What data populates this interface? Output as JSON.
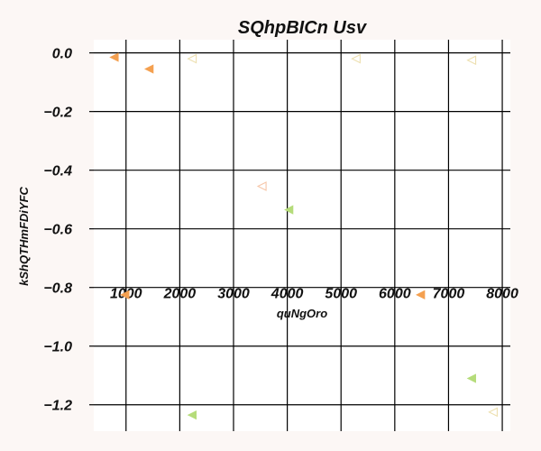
{
  "chart_data": {
    "type": "scatter",
    "title": "SQhpBICn  Usv",
    "xlabel": "quNgOro",
    "ylabel": "kShQTHmFDiYFC",
    "xlim": [
      400,
      8150
    ],
    "ylim": [
      -1.29,
      0.045
    ],
    "x_ticks": [
      1000,
      2000,
      3000,
      4000,
      5000,
      6000,
      7000,
      8000
    ],
    "y_ticks": [
      0.0,
      -0.2,
      -0.4,
      -0.6,
      -0.8,
      -1.0,
      -1.2
    ],
    "x_tick_labels": [
      "1000",
      "2000",
      "3000",
      "4000",
      "5000",
      "6000",
      "7000",
      "8000"
    ],
    "y_tick_labels": [
      "0.0",
      "−0.2",
      "−0.4",
      "−0.6",
      "−0.8",
      "−1.0",
      "−1.2"
    ],
    "grid": true,
    "legend": "none",
    "colors": {
      "background": "#fcf7f5",
      "plot_background": "#ffffff",
      "grid": "#000000",
      "orange": "#f4a050",
      "green": "#b5dc7a",
      "orange_light": "#f6c6a8",
      "yellow_light": "#ede0b0"
    },
    "series": [
      {
        "marker": "triangle-left-filled",
        "color": "#f4a050",
        "points": [
          {
            "x": 780,
            "y": -0.015
          },
          {
            "x": 1430,
            "y": -0.055
          },
          {
            "x": 980,
            "y": -0.825
          },
          {
            "x": 6480,
            "y": -0.825
          }
        ]
      },
      {
        "marker": "triangle-left-filled",
        "color": "#b5dc7a",
        "points": [
          {
            "x": 4030,
            "y": -0.535
          },
          {
            "x": 7430,
            "y": -1.11
          },
          {
            "x": 2230,
            "y": -1.235
          }
        ]
      },
      {
        "marker": "triangle-left-open",
        "color": "#f6c6a8",
        "points": [
          {
            "x": 3530,
            "y": -0.455
          }
        ]
      },
      {
        "marker": "triangle-left-open",
        "color": "#ede0b0",
        "points": [
          {
            "x": 2230,
            "y": -0.02
          },
          {
            "x": 5280,
            "y": -0.02
          },
          {
            "x": 7430,
            "y": -0.025
          },
          {
            "x": 7830,
            "y": -1.225
          }
        ]
      }
    ]
  }
}
